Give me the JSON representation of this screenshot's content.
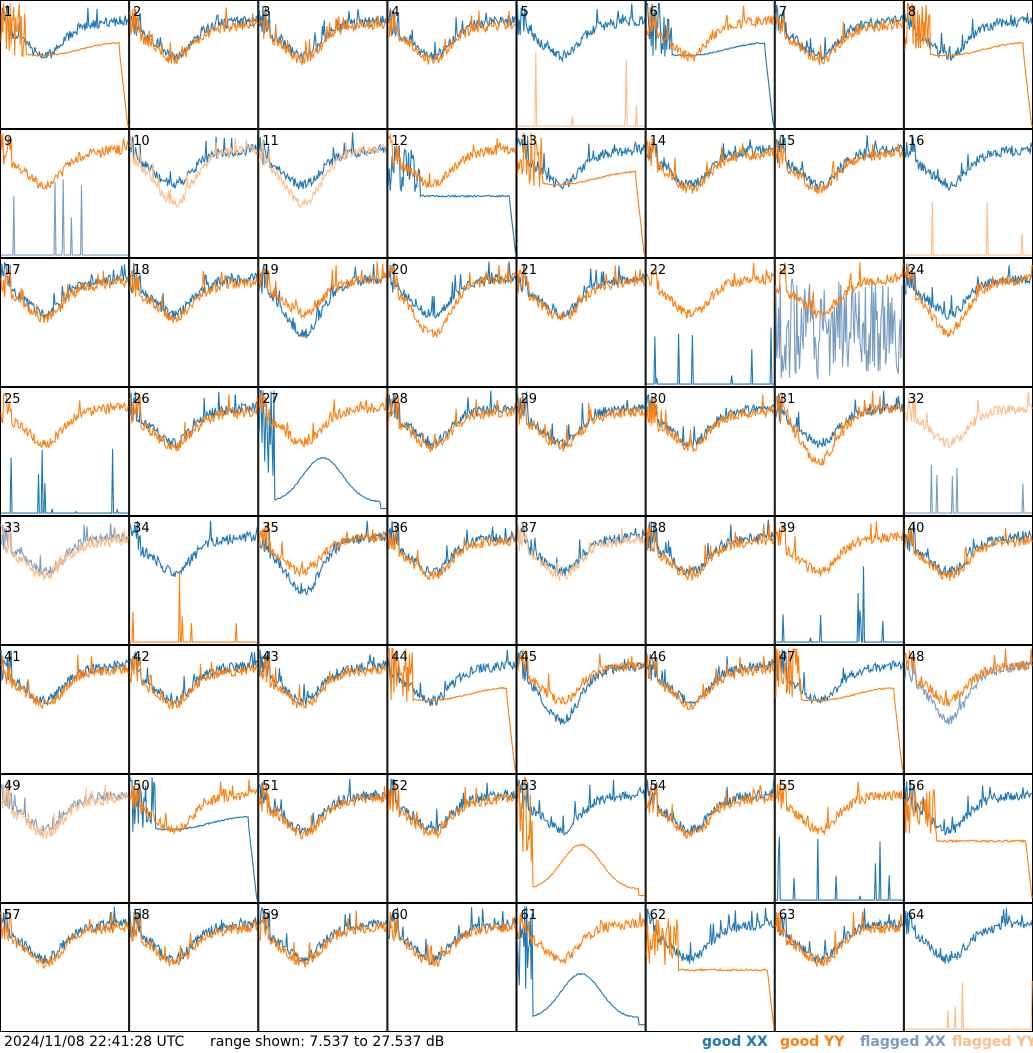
{
  "footer": {
    "timestamp": "2024/11/08 22:41:28 UTC",
    "range_text": "range shown: 7.537 to 27.537 dB"
  },
  "legend": [
    {
      "label": "good XX",
      "color": "#1f77b4"
    },
    {
      "label": "good YY",
      "color": "#ff7f0e"
    },
    {
      "label": "flagged XX",
      "color": "#7a9cc0"
    },
    {
      "label": "flagged YY",
      "color": "#ffbd8a"
    }
  ],
  "chart_data": {
    "type": "line",
    "layout": "8x8 small multiples",
    "y_range_db": [
      7.537,
      27.537
    ],
    "panels": [
      {
        "id": "1",
        "xx": "good",
        "yy": "good",
        "xx_mode": "normal",
        "yy_mode": "flat-tail"
      },
      {
        "id": "2",
        "xx": "good",
        "yy": "good",
        "xx_mode": "normal",
        "yy_mode": "normal"
      },
      {
        "id": "3",
        "xx": "good",
        "yy": "good",
        "xx_mode": "normal",
        "yy_mode": "normal"
      },
      {
        "id": "4",
        "xx": "good",
        "yy": "good",
        "xx_mode": "normal",
        "yy_mode": "normal"
      },
      {
        "id": "5",
        "xx": "good",
        "yy": "flagged",
        "xx_mode": "normal",
        "yy_mode": "spikes"
      },
      {
        "id": "6",
        "xx": "good",
        "yy": "good",
        "xx_mode": "flat-tail",
        "yy_mode": "normal"
      },
      {
        "id": "7",
        "xx": "good",
        "yy": "good",
        "xx_mode": "normal",
        "yy_mode": "normal"
      },
      {
        "id": "8",
        "xx": "good",
        "yy": "good",
        "xx_mode": "normal",
        "yy_mode": "flat-tail"
      },
      {
        "id": "9",
        "xx": "flagged",
        "yy": "good",
        "xx_mode": "spikes",
        "yy_mode": "normal"
      },
      {
        "id": "10",
        "xx": "good",
        "yy": "flagged",
        "xx_mode": "normal",
        "yy_mode": "low-bowl"
      },
      {
        "id": "11",
        "xx": "good",
        "yy": "flagged",
        "xx_mode": "normal",
        "yy_mode": "low-bowl"
      },
      {
        "id": "12",
        "xx": "good",
        "yy": "good",
        "xx_mode": "flat-low",
        "yy_mode": "normal"
      },
      {
        "id": "13",
        "xx": "good",
        "yy": "good",
        "xx_mode": "normal",
        "yy_mode": "flat-tail"
      },
      {
        "id": "14",
        "xx": "good",
        "yy": "good",
        "xx_mode": "normal",
        "yy_mode": "normal"
      },
      {
        "id": "15",
        "xx": "good",
        "yy": "good",
        "xx_mode": "normal",
        "yy_mode": "normal"
      },
      {
        "id": "16",
        "xx": "good",
        "yy": "flagged",
        "xx_mode": "normal",
        "yy_mode": "spikes"
      },
      {
        "id": "17",
        "xx": "good",
        "yy": "good",
        "xx_mode": "normal",
        "yy_mode": "normal"
      },
      {
        "id": "18",
        "xx": "good",
        "yy": "good",
        "xx_mode": "normal",
        "yy_mode": "normal"
      },
      {
        "id": "19",
        "xx": "good",
        "yy": "good",
        "xx_mode": "low-bowl",
        "yy_mode": "normal"
      },
      {
        "id": "20",
        "xx": "good",
        "yy": "good",
        "xx_mode": "normal",
        "yy_mode": "low-bowl"
      },
      {
        "id": "21",
        "xx": "good",
        "yy": "good",
        "xx_mode": "normal",
        "yy_mode": "normal"
      },
      {
        "id": "22",
        "xx": "good",
        "yy": "good",
        "xx_mode": "spikes",
        "yy_mode": "normal"
      },
      {
        "id": "23",
        "xx": "flagged",
        "yy": "good",
        "xx_mode": "noisy-low",
        "yy_mode": "normal"
      },
      {
        "id": "24",
        "xx": "good",
        "yy": "good",
        "xx_mode": "normal",
        "yy_mode": "low-bowl"
      },
      {
        "id": "25",
        "xx": "good",
        "yy": "good",
        "xx_mode": "spikes",
        "yy_mode": "normal"
      },
      {
        "id": "26",
        "xx": "good",
        "yy": "good",
        "xx_mode": "normal",
        "yy_mode": "normal"
      },
      {
        "id": "27",
        "xx": "good",
        "yy": "good",
        "xx_mode": "hump",
        "yy_mode": "normal"
      },
      {
        "id": "28",
        "xx": "good",
        "yy": "good",
        "xx_mode": "normal",
        "yy_mode": "normal"
      },
      {
        "id": "29",
        "xx": "good",
        "yy": "good",
        "xx_mode": "normal",
        "yy_mode": "normal"
      },
      {
        "id": "30",
        "xx": "good",
        "yy": "good",
        "xx_mode": "normal",
        "yy_mode": "normal"
      },
      {
        "id": "31",
        "xx": "good",
        "yy": "good",
        "xx_mode": "normal",
        "yy_mode": "low-bowl"
      },
      {
        "id": "32",
        "xx": "flagged",
        "yy": "flagged",
        "xx_mode": "spikes",
        "yy_mode": "normal"
      },
      {
        "id": "33",
        "xx": "flagged",
        "yy": "flagged",
        "xx_mode": "normal",
        "yy_mode": "normal"
      },
      {
        "id": "34",
        "xx": "good",
        "yy": "good",
        "xx_mode": "normal",
        "yy_mode": "spikes"
      },
      {
        "id": "35",
        "xx": "good",
        "yy": "good",
        "xx_mode": "low-bowl",
        "yy_mode": "normal"
      },
      {
        "id": "36",
        "xx": "good",
        "yy": "good",
        "xx_mode": "normal",
        "yy_mode": "normal"
      },
      {
        "id": "37",
        "xx": "good",
        "yy": "flagged",
        "xx_mode": "normal",
        "yy_mode": "normal"
      },
      {
        "id": "38",
        "xx": "good",
        "yy": "good",
        "xx_mode": "normal",
        "yy_mode": "normal"
      },
      {
        "id": "39",
        "xx": "good",
        "yy": "good",
        "xx_mode": "spikes",
        "yy_mode": "normal"
      },
      {
        "id": "40",
        "xx": "good",
        "yy": "good",
        "xx_mode": "normal",
        "yy_mode": "normal"
      },
      {
        "id": "41",
        "xx": "good",
        "yy": "good",
        "xx_mode": "normal",
        "yy_mode": "normal"
      },
      {
        "id": "42",
        "xx": "good",
        "yy": "good",
        "xx_mode": "normal",
        "yy_mode": "normal"
      },
      {
        "id": "43",
        "xx": "good",
        "yy": "good",
        "xx_mode": "normal",
        "yy_mode": "normal"
      },
      {
        "id": "44",
        "xx": "good",
        "yy": "good",
        "xx_mode": "normal",
        "yy_mode": "flat-tail"
      },
      {
        "id": "45",
        "xx": "good",
        "yy": "good",
        "xx_mode": "low-bowl",
        "yy_mode": "normal"
      },
      {
        "id": "46",
        "xx": "good",
        "yy": "good",
        "xx_mode": "normal",
        "yy_mode": "normal"
      },
      {
        "id": "47",
        "xx": "good",
        "yy": "good",
        "xx_mode": "normal",
        "yy_mode": "flat-tail"
      },
      {
        "id": "48",
        "xx": "flagged",
        "yy": "good",
        "xx_mode": "low-bowl",
        "yy_mode": "normal"
      },
      {
        "id": "49",
        "xx": "flagged",
        "yy": "flagged",
        "xx_mode": "normal",
        "yy_mode": "normal"
      },
      {
        "id": "50",
        "xx": "good",
        "yy": "good",
        "xx_mode": "flat-tail",
        "yy_mode": "normal"
      },
      {
        "id": "51",
        "xx": "good",
        "yy": "good",
        "xx_mode": "normal",
        "yy_mode": "normal"
      },
      {
        "id": "52",
        "xx": "good",
        "yy": "good",
        "xx_mode": "normal",
        "yy_mode": "normal"
      },
      {
        "id": "53",
        "xx": "good",
        "yy": "good",
        "xx_mode": "normal",
        "yy_mode": "hump"
      },
      {
        "id": "54",
        "xx": "good",
        "yy": "good",
        "xx_mode": "normal",
        "yy_mode": "normal"
      },
      {
        "id": "55",
        "xx": "good",
        "yy": "good",
        "xx_mode": "spikes",
        "yy_mode": "normal"
      },
      {
        "id": "56",
        "xx": "good",
        "yy": "good",
        "xx_mode": "normal",
        "yy_mode": "flat-low"
      },
      {
        "id": "57",
        "xx": "good",
        "yy": "good",
        "xx_mode": "normal",
        "yy_mode": "normal"
      },
      {
        "id": "58",
        "xx": "good",
        "yy": "good",
        "xx_mode": "normal",
        "yy_mode": "normal"
      },
      {
        "id": "59",
        "xx": "good",
        "yy": "good",
        "xx_mode": "normal",
        "yy_mode": "normal"
      },
      {
        "id": "60",
        "xx": "good",
        "yy": "good",
        "xx_mode": "normal",
        "yy_mode": "normal"
      },
      {
        "id": "61",
        "xx": "good",
        "yy": "good",
        "xx_mode": "hump",
        "yy_mode": "normal"
      },
      {
        "id": "62",
        "xx": "good",
        "yy": "good",
        "xx_mode": "normal",
        "yy_mode": "flat-low"
      },
      {
        "id": "63",
        "xx": "good",
        "yy": "good",
        "xx_mode": "normal",
        "yy_mode": "normal"
      },
      {
        "id": "64",
        "xx": "good",
        "yy": "flagged",
        "xx_mode": "normal",
        "yy_mode": "spikes"
      }
    ]
  }
}
